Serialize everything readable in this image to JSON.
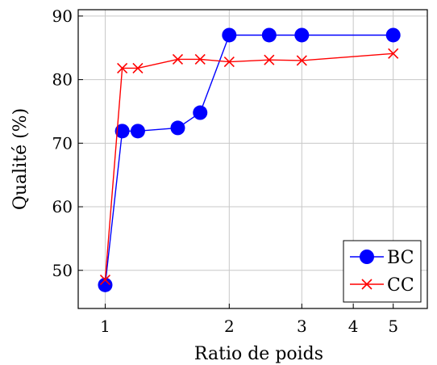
{
  "chart_data": {
    "type": "line",
    "x_scale": "log",
    "xlabel": "Ratio de poids",
    "ylabel": "Qualité (%)",
    "xlim": [
      0.86,
      6.05
    ],
    "ylim": [
      44,
      91
    ],
    "x_ticks": [
      1,
      2,
      3,
      4,
      5
    ],
    "x_tick_labels": [
      "1",
      "2",
      "3",
      "4",
      "5"
    ],
    "y_ticks": [
      50,
      60,
      70,
      80,
      90
    ],
    "y_tick_labels": [
      "50",
      "60",
      "70",
      "80",
      "90"
    ],
    "grid": true,
    "legend_position": "bottom-right",
    "series": [
      {
        "name": "BC",
        "color": "#0000ff",
        "marker": "circle",
        "x": [
          1,
          1.1,
          1.2,
          1.5,
          1.7,
          2,
          2.5,
          3,
          5
        ],
        "y": [
          47.7,
          71.9,
          71.9,
          72.4,
          74.8,
          87,
          87,
          87,
          87
        ]
      },
      {
        "name": "CC",
        "color": "#ff0000",
        "marker": "cross",
        "x": [
          1,
          1.1,
          1.2,
          1.5,
          1.7,
          2,
          2.5,
          3,
          5
        ],
        "y": [
          48.5,
          81.8,
          81.8,
          83.2,
          83.2,
          82.8,
          83.1,
          83,
          84.1
        ]
      }
    ]
  }
}
